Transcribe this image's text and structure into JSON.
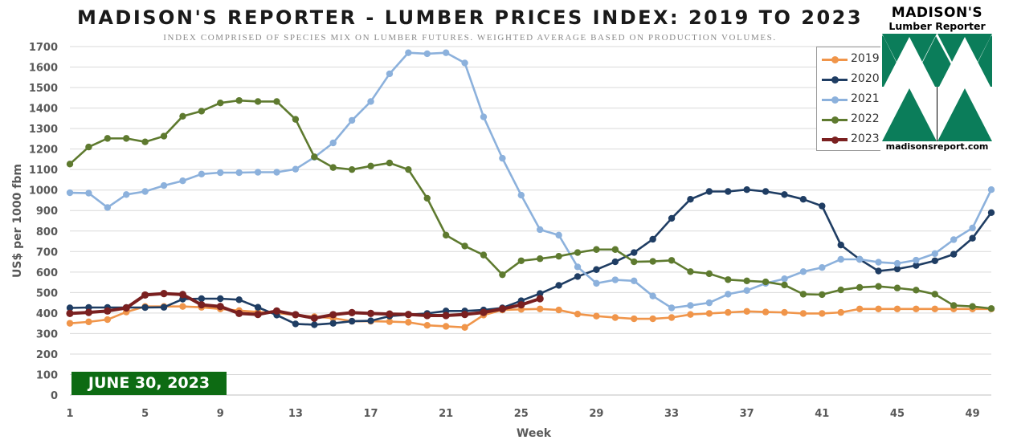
{
  "header": {
    "title": "MADISON'S REPORTER - LUMBER PRICES INDEX: 2019 TO 2023",
    "subtitle": "INDEX COMPRISED OF SPECIES MIX ON LUMBER FUTURES. WEIGHTED AVERAGE BASED ON PRODUCTION VOLUMES."
  },
  "badge": {
    "text": "JUNE 30, 2023",
    "color": "#0d6b13"
  },
  "logo": {
    "line1": "MADISON'S",
    "line2": "Lumber Reporter",
    "url": "madisonsreport.com",
    "icon": "tree-triangles-logo",
    "color": "#0b7d5a"
  },
  "chart_data": {
    "type": "line",
    "title": "MADISON'S REPORTER - LUMBER PRICES INDEX: 2019 TO 2023",
    "subtitle": "INDEX COMPRISED OF SPECIES MIX ON LUMBER FUTURES. WEIGHTED AVERAGE BASED ON PRODUCTION VOLUMES.",
    "xlabel": "Week",
    "ylabel": "US$ per 1000 fbm",
    "xlim": [
      1,
      50
    ],
    "ylim": [
      0,
      1700
    ],
    "xticks": [
      1,
      5,
      9,
      13,
      17,
      21,
      25,
      29,
      33,
      37,
      41,
      45,
      49
    ],
    "yticks": [
      0,
      100,
      200,
      300,
      400,
      500,
      600,
      700,
      800,
      900,
      1000,
      1100,
      1200,
      1300,
      1400,
      1500,
      1600,
      1700
    ],
    "grid": true,
    "legend_position": "top-right",
    "series": [
      {
        "name": "2019",
        "color": "#f0954a",
        "values": [
          350,
          357,
          368,
          405,
          432,
          432,
          432,
          428,
          420,
          412,
          405,
          400,
          390,
          382,
          375,
          360,
          360,
          358,
          355,
          340,
          335,
          330,
          390,
          415,
          418,
          420,
          415,
          395,
          385,
          378,
          372,
          372,
          378,
          393,
          398,
          403,
          408,
          405,
          403,
          398,
          398,
          403,
          420,
          420,
          420,
          420,
          420,
          420,
          420,
          420
        ]
      },
      {
        "name": "2020",
        "color": "#1f3d63",
        "values": [
          425,
          427,
          427,
          427,
          427,
          428,
          468,
          470,
          470,
          465,
          428,
          390,
          347,
          343,
          350,
          360,
          362,
          385,
          392,
          398,
          410,
          410,
          415,
          425,
          460,
          495,
          535,
          578,
          612,
          650,
          695,
          760,
          862,
          955,
          993,
          993,
          1002,
          993,
          978,
          955,
          922,
          732,
          662,
          605,
          615,
          632,
          655,
          687,
          765,
          890
        ]
      },
      {
        "name": "2021",
        "color": "#8cb1dc",
        "values": [
          987,
          985,
          915,
          978,
          993,
          1022,
          1045,
          1078,
          1085,
          1085,
          1087,
          1087,
          1102,
          1160,
          1230,
          1340,
          1432,
          1567,
          1670,
          1665,
          1670,
          1620,
          1357,
          1155,
          975,
          807,
          780,
          625,
          545,
          562,
          557,
          483,
          425,
          437,
          450,
          492,
          510,
          545,
          567,
          602,
          622,
          662,
          662,
          648,
          642,
          658,
          690,
          758,
          815,
          1002
        ]
      },
      {
        "name": "2022",
        "color": "#5e7a2f",
        "values": [
          1127,
          1210,
          1252,
          1252,
          1235,
          1263,
          1360,
          1385,
          1425,
          1437,
          1432,
          1432,
          1345,
          1162,
          1110,
          1100,
          1117,
          1132,
          1100,
          960,
          780,
          727,
          683,
          587,
          655,
          665,
          677,
          695,
          710,
          710,
          650,
          652,
          657,
          602,
          592,
          563,
          557,
          552,
          537,
          492,
          490,
          513,
          525,
          530,
          522,
          512,
          492,
          437,
          432,
          422
        ]
      },
      {
        "name": "2023",
        "color": "#7a2020",
        "values": [
          398,
          403,
          410,
          425,
          488,
          495,
          490,
          440,
          432,
          398,
          393,
          410,
          392,
          375,
          392,
          402,
          398,
          395,
          393,
          388,
          388,
          393,
          403,
          420,
          440,
          470
        ]
      }
    ]
  }
}
